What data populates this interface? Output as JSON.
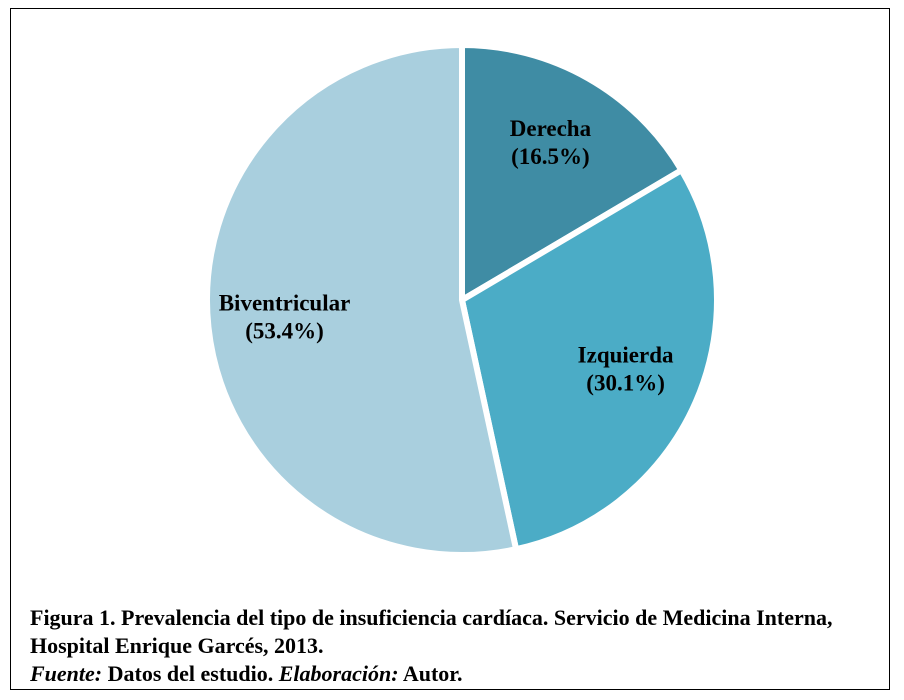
{
  "chart_data": {
    "type": "pie",
    "categories": [
      "Derecha",
      "Izquierda",
      "Biventricular"
    ],
    "values": [
      16.5,
      30.1,
      53.4
    ],
    "value_labels": [
      "(16.5%)",
      "(30.1%)",
      "(53.4%)"
    ],
    "colors": [
      "#3f8ca4",
      "#4bacc6",
      "#a9cfde"
    ],
    "caption": "Figura 1. Prevalencia del tipo de insuficiencia cardíaca. Servicio de Medicina Interna, Hospital Enrique Garcés, 2013.",
    "source_label": "Fuente:",
    "source_text": "Datos del estudio.",
    "credit_label": "Elaboración:",
    "credit_text": "Autor."
  }
}
